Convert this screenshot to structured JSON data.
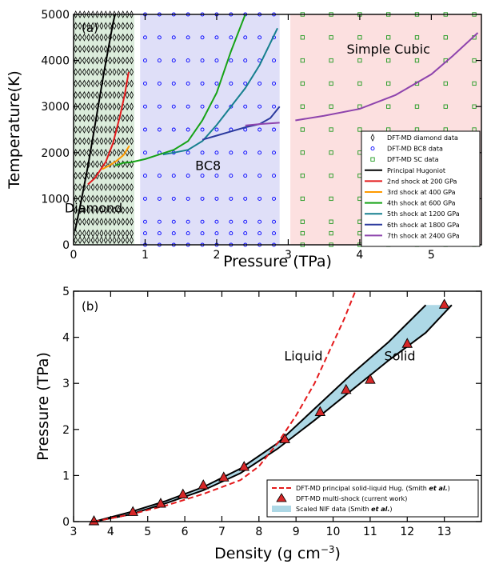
{
  "chart_data": [
    {
      "panel": "(a)",
      "type": "scatter",
      "xlabel": "Pressure (TPa)",
      "ylabel": "Temperature(K)",
      "xlim": [
        0,
        5.7
      ],
      "ylim": [
        0,
        5000
      ],
      "xticks": [
        0,
        1,
        2,
        3,
        4,
        5
      ],
      "yticks": [
        0,
        1000,
        2000,
        3000,
        4000,
        5000
      ],
      "regions": [
        {
          "label": "Diamond",
          "x": [
            0,
            0.85
          ],
          "color": "#cfe6cf"
        },
        {
          "label": "BC8",
          "x": [
            0.93,
            2.88
          ],
          "color": "#d4d4f6"
        },
        {
          "label": "Simple Cubic",
          "x": [
            3.03,
            5.7
          ],
          "color": "#fbd6d6"
        }
      ],
      "series": [
        {
          "name": "DFT-MD diamond data",
          "kind": "marker",
          "color": "#000000"
        },
        {
          "name": "DFT-MD BC8 data",
          "kind": "marker",
          "color": "#0000ff"
        },
        {
          "name": "DFT-MD SC data",
          "kind": "marker",
          "color": "#1f9a1f"
        },
        {
          "name": "Principal Hugoniot",
          "kind": "line",
          "color": "#000000",
          "points": [
            [
              0.02,
              300
            ],
            [
              0.1,
              900
            ],
            [
              0.2,
              1700
            ],
            [
              0.3,
              2600
            ],
            [
              0.42,
              3700
            ],
            [
              0.55,
              4800
            ],
            [
              0.58,
              5000
            ]
          ]
        },
        {
          "name": "2nd shock at 200 GPa",
          "kind": "line",
          "color": "#e41a1c",
          "points": [
            [
              0.2,
              1310
            ],
            [
              0.3,
              1450
            ],
            [
              0.45,
              1800
            ],
            [
              0.55,
              2200
            ],
            [
              0.65,
              2800
            ],
            [
              0.72,
              3300
            ],
            [
              0.77,
              3750
            ]
          ]
        },
        {
          "name": "3rd shock at 400 GPa",
          "kind": "line",
          "color": "#ff9a00",
          "points": [
            [
              0.4,
              1640
            ],
            [
              0.5,
              1720
            ],
            [
              0.6,
              1820
            ],
            [
              0.7,
              1950
            ],
            [
              0.78,
              2150
            ]
          ]
        },
        {
          "name": "4th shock at 600 GPa",
          "kind": "line",
          "color": "#17a317",
          "points": [
            [
              0.58,
              1720
            ],
            [
              0.7,
              1780
            ],
            [
              0.8,
              1790
            ],
            [
              1.0,
              1860
            ],
            [
              1.2,
              1960
            ],
            [
              1.4,
              2060
            ],
            [
              1.6,
              2250
            ],
            [
              1.8,
              2700
            ],
            [
              2.0,
              3300
            ],
            [
              2.2,
              4200
            ],
            [
              2.4,
              5000
            ]
          ]
        },
        {
          "name": "5th shock at 1200 GPa",
          "kind": "line",
          "color": "#17808f",
          "points": [
            [
              1.25,
              1960
            ],
            [
              1.4,
              2000
            ],
            [
              1.6,
              2060
            ],
            [
              1.8,
              2250
            ],
            [
              2.0,
              2600
            ],
            [
              2.2,
              3000
            ],
            [
              2.4,
              3400
            ],
            [
              2.6,
              3900
            ],
            [
              2.85,
              4700
            ]
          ]
        },
        {
          "name": "6th shock at 1800 GPa",
          "kind": "line",
          "color": "#2b3a9e",
          "points": [
            [
              1.8,
              2280
            ],
            [
              2.0,
              2370
            ],
            [
              2.2,
              2460
            ],
            [
              2.4,
              2550
            ],
            [
              2.6,
              2620
            ],
            [
              2.75,
              2750
            ],
            [
              2.88,
              3000
            ]
          ]
        },
        {
          "name": "7th shock at 2400 GPa",
          "kind": "line",
          "color": "#8e44ad",
          "points": [
            [
              2.4,
              2590
            ],
            [
              2.6,
              2620
            ],
            [
              2.88,
              2650
            ]
          ]
        },
        {
          "name": "7th shock at 2400 GPa (SC)",
          "kind": "line",
          "color": "#8e44ad",
          "legend": false,
          "points": [
            [
              3.1,
              2700
            ],
            [
              3.5,
              2800
            ],
            [
              4.0,
              2950
            ],
            [
              4.5,
              3250
            ],
            [
              5.0,
              3700
            ],
            [
              5.3,
              4100
            ],
            [
              5.65,
              4600
            ]
          ]
        }
      ],
      "grid": {
        "diamond_x": [
          0.03,
          0.09,
          0.15,
          0.21,
          0.27,
          0.33,
          0.39,
          0.45,
          0.51,
          0.57,
          0.63,
          0.69,
          0.75,
          0.81
        ],
        "diamond_y": [
          100,
          250,
          500,
          750,
          1000,
          1250,
          1500,
          1750,
          2000,
          2250,
          2500,
          2750,
          3000,
          3250,
          3500,
          3750,
          4000,
          4250,
          4500,
          4750,
          5000
        ],
        "bc8_x": [
          1.0,
          1.2,
          1.4,
          1.6,
          1.8,
          2.0,
          2.2,
          2.4,
          2.6,
          2.8
        ],
        "bc8_y": [
          0,
          250,
          500,
          1000,
          1500,
          2000,
          2500,
          3000,
          3500,
          4000,
          4500,
          5000
        ],
        "sc_x": [
          3.2,
          3.6,
          4.0,
          4.4,
          4.8,
          5.2,
          5.6
        ],
        "sc_y": [
          0,
          250,
          500,
          1000,
          1500,
          2000,
          2500,
          3000,
          3500,
          4000,
          4500,
          5000
        ]
      },
      "region_labels": [
        {
          "text": "Diamond",
          "x": 0.28,
          "y": 700
        },
        {
          "text": "BC8",
          "x": 1.88,
          "y": 1620
        },
        {
          "text": "Simple Cubic",
          "x": 4.4,
          "y": 4150
        }
      ]
    },
    {
      "panel": "(b)",
      "type": "line",
      "xlabel": "Density (g cm",
      "xlabel_sup": "−3",
      "xlabel_end": ")",
      "ylabel": "Pressure (TPa)",
      "xlim": [
        3,
        14
      ],
      "ylim": [
        0,
        5
      ],
      "xticks": [
        3,
        4,
        5,
        6,
        7,
        8,
        9,
        10,
        11,
        12,
        13
      ],
      "yticks": [
        0,
        1,
        2,
        3,
        4,
        5
      ],
      "series": [
        {
          "name_parts": [
            "DFT-MD principal solid-liquid Hug. (Smith ",
            "et al.",
            ")"
          ],
          "kind": "dashed",
          "color": "#e41a1c",
          "points": [
            [
              3.55,
              0
            ],
            [
              4.5,
              0.15
            ],
            [
              5.5,
              0.35
            ],
            [
              6.5,
              0.6
            ],
            [
              7.5,
              0.9
            ],
            [
              8.0,
              1.2
            ],
            [
              8.5,
              1.7
            ],
            [
              9.0,
              2.3
            ],
            [
              9.5,
              3.0
            ],
            [
              9.9,
              3.7
            ],
            [
              10.3,
              4.4
            ],
            [
              10.6,
              5.0
            ]
          ]
        },
        {
          "name": "DFT-MD multi-shock (current work)",
          "kind": "marker",
          "color": "#d62728",
          "points": [
            [
              3.55,
              0.0
            ],
            [
              4.6,
              0.2
            ],
            [
              5.35,
              0.38
            ],
            [
              5.95,
              0.58
            ],
            [
              6.5,
              0.78
            ],
            [
              7.05,
              0.95
            ],
            [
              7.6,
              1.18
            ],
            [
              8.7,
              1.78
            ],
            [
              9.65,
              2.37
            ],
            [
              10.35,
              2.85
            ],
            [
              11.0,
              3.07
            ],
            [
              12.0,
              3.85
            ],
            [
              13.0,
              4.7
            ]
          ]
        },
        {
          "name": "Scaled NIF data (Smith ",
          "name_em": "et al.",
          "name_end": ")",
          "kind": "band",
          "color": "#add8e6",
          "upper": [
            [
              3.55,
              0
            ],
            [
              4.5,
              0.2
            ],
            [
              5.5,
              0.45
            ],
            [
              6.5,
              0.75
            ],
            [
              7.5,
              1.15
            ],
            [
              8.5,
              1.7
            ],
            [
              9.5,
              2.45
            ],
            [
              10.5,
              3.2
            ],
            [
              11.5,
              3.9
            ],
            [
              12.5,
              4.7
            ]
          ],
          "lower": [
            [
              3.55,
              0
            ],
            [
              4.5,
              0.15
            ],
            [
              5.5,
              0.4
            ],
            [
              6.5,
              0.68
            ],
            [
              7.5,
              1.05
            ],
            [
              8.5,
              1.58
            ],
            [
              9.5,
              2.2
            ],
            [
              10.5,
              2.85
            ],
            [
              11.5,
              3.5
            ],
            [
              12.5,
              4.1
            ],
            [
              13.2,
              4.7
            ]
          ]
        }
      ],
      "region_labels": [
        {
          "text": "Liquid",
          "x": 9.2,
          "y": 3.5
        },
        {
          "text": "Solid",
          "x": 11.8,
          "y": 3.5
        }
      ]
    }
  ]
}
